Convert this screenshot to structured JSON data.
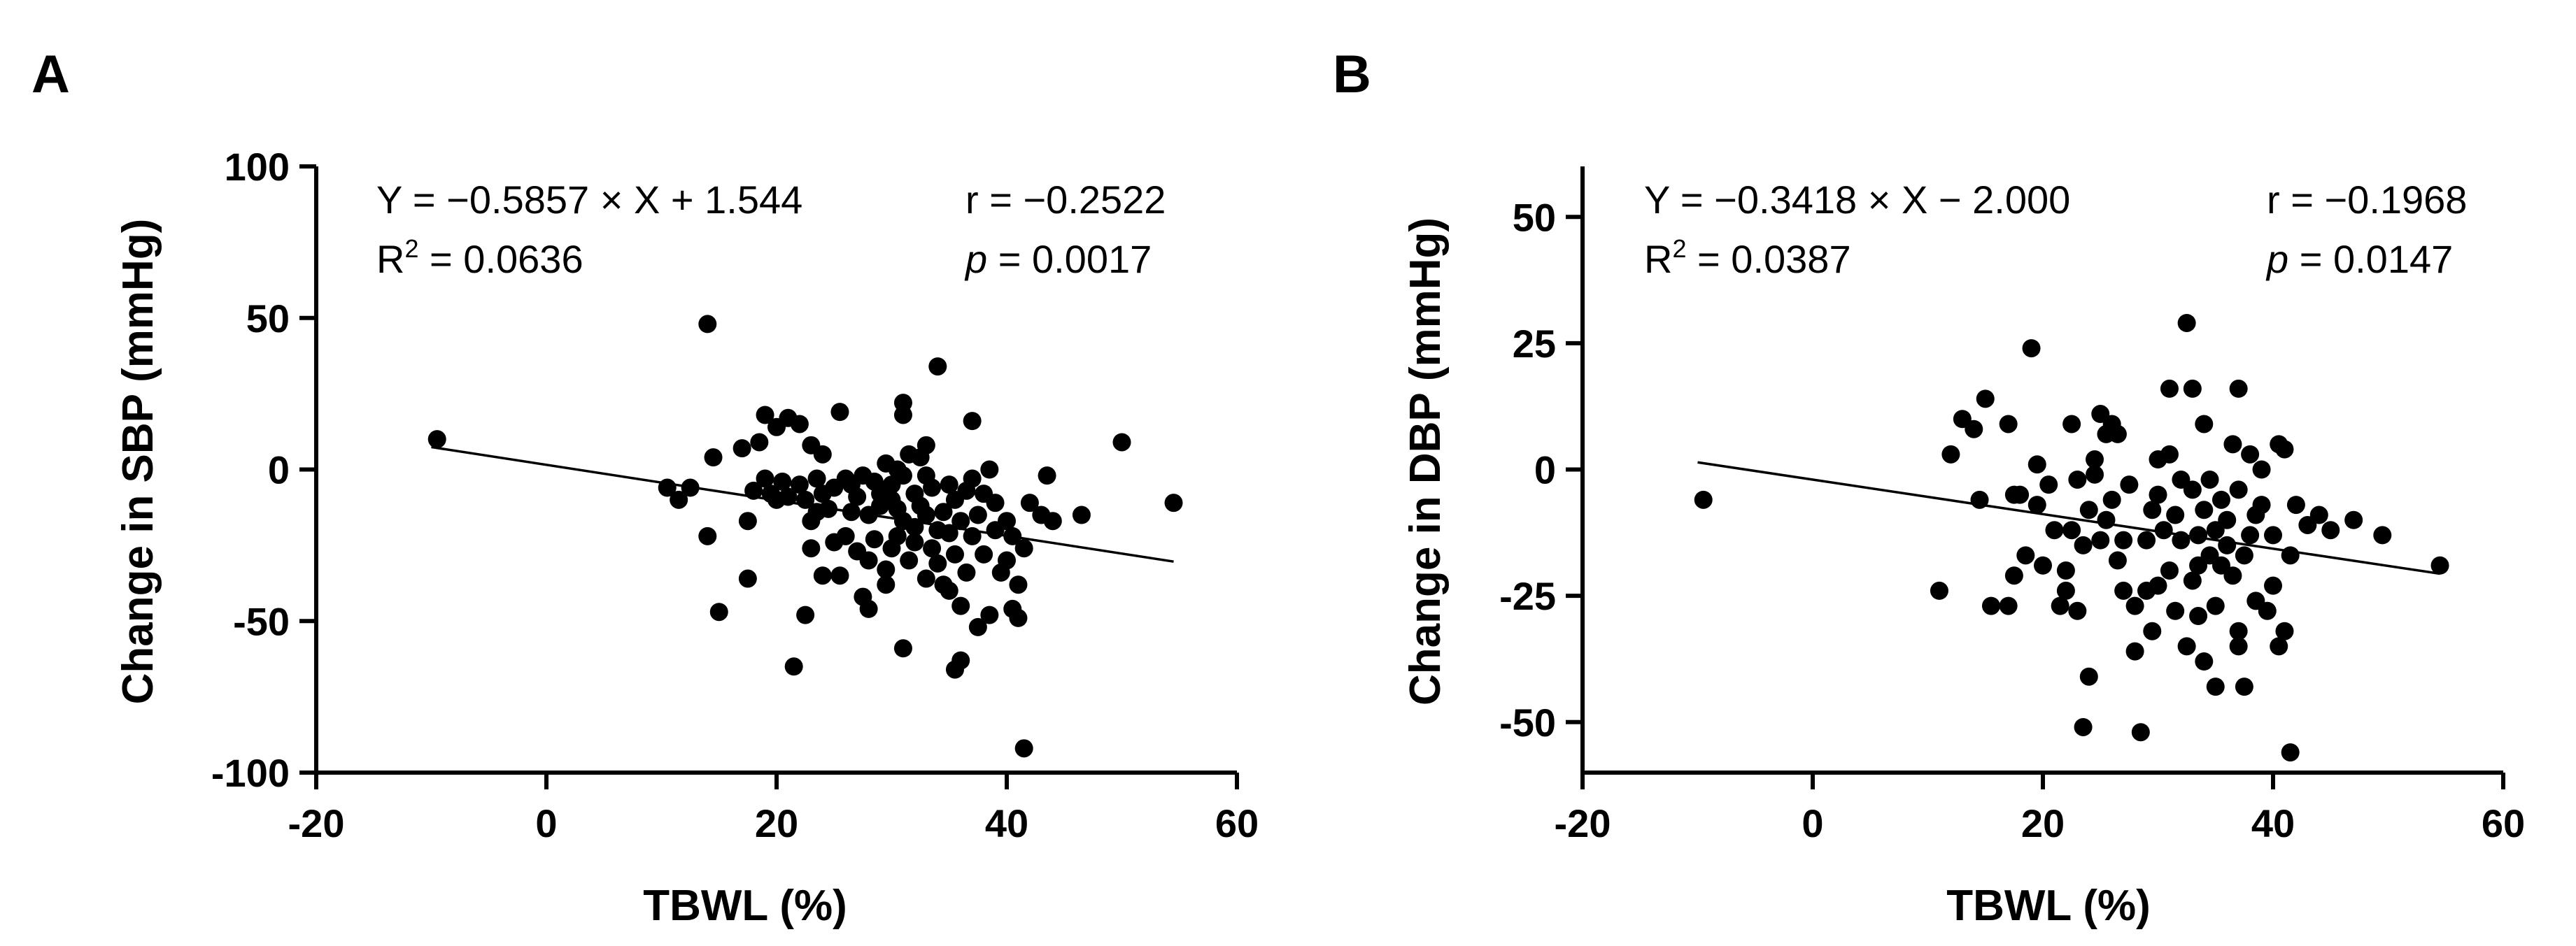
{
  "chart_data": [
    {
      "type": "scatter",
      "panel_label": "A",
      "xlabel": "TBWL (%)",
      "ylabel": "Change in SBP (mmHg)",
      "xlim": [
        -20,
        60
      ],
      "ylim": [
        -100,
        100
      ],
      "xticks": [
        -20,
        0,
        20,
        40,
        60
      ],
      "yticks": [
        -100,
        -50,
        0,
        50,
        100
      ],
      "xtick_labels": [
        "-20",
        "0",
        "20",
        "40",
        "60"
      ],
      "ytick_labels": [
        "-100",
        "-50",
        "0",
        "50",
        "100"
      ],
      "regression": {
        "slope": -0.5857,
        "intercept": 1.544,
        "x_range": [
          -10,
          54.5
        ]
      },
      "equation_text": "Y = −0.5857 × X + 1.544",
      "r2_prefix": "R",
      "r2_sup": "2",
      "r2_value": " = 0.0636",
      "r_text": "r = −0.2522",
      "p_symbol": "p",
      "p_value": " = 0.0017",
      "points": [
        [
          -9.5,
          10
        ],
        [
          14,
          48
        ],
        [
          14.5,
          4
        ],
        [
          14,
          -22
        ],
        [
          15,
          -47
        ],
        [
          10.5,
          -6
        ],
        [
          11.5,
          -10
        ],
        [
          12.5,
          -6
        ],
        [
          17,
          7
        ],
        [
          17.5,
          -17
        ],
        [
          17.5,
          -36
        ],
        [
          18,
          -7
        ],
        [
          18.5,
          9
        ],
        [
          19,
          -3
        ],
        [
          19,
          18
        ],
        [
          19.5,
          -8
        ],
        [
          20,
          14
        ],
        [
          20,
          -10
        ],
        [
          20.5,
          -4
        ],
        [
          21,
          -9
        ],
        [
          21,
          17
        ],
        [
          21.5,
          -65
        ],
        [
          22,
          15
        ],
        [
          22,
          -5
        ],
        [
          22.5,
          -10
        ],
        [
          22.5,
          -48
        ],
        [
          23,
          8
        ],
        [
          23,
          -26
        ],
        [
          23,
          -17
        ],
        [
          23.5,
          -3
        ],
        [
          23.5,
          -14
        ],
        [
          24,
          5
        ],
        [
          24,
          -35
        ],
        [
          24,
          -8
        ],
        [
          24.5,
          -13
        ],
        [
          25,
          -24
        ],
        [
          25,
          -6
        ],
        [
          25.5,
          19
        ],
        [
          25.5,
          -35
        ],
        [
          26,
          -3
        ],
        [
          26,
          -22
        ],
        [
          26.5,
          -14
        ],
        [
          26.5,
          -5
        ],
        [
          27,
          -27
        ],
        [
          27,
          -9
        ],
        [
          27.5,
          -42
        ],
        [
          27.5,
          -2
        ],
        [
          28,
          -46
        ],
        [
          28,
          -15
        ],
        [
          28.5,
          -4
        ],
        [
          28.5,
          -23
        ],
        [
          29,
          -12
        ],
        [
          29,
          -8
        ],
        [
          29.5,
          2
        ],
        [
          29.5,
          -33
        ],
        [
          29.5,
          -38
        ],
        [
          30,
          -10
        ],
        [
          30,
          -26
        ],
        [
          30,
          -5
        ],
        [
          30.5,
          -22
        ],
        [
          30.5,
          -13
        ],
        [
          31,
          -2
        ],
        [
          31,
          -17
        ],
        [
          31,
          22
        ],
        [
          31,
          18
        ],
        [
          31,
          -59
        ],
        [
          31.5,
          5
        ],
        [
          31.5,
          -30
        ],
        [
          32,
          -8
        ],
        [
          32,
          -19
        ],
        [
          32,
          -24
        ],
        [
          32.5,
          4
        ],
        [
          32.5,
          -12
        ],
        [
          33,
          -36
        ],
        [
          33,
          8
        ],
        [
          33,
          -15
        ],
        [
          33.5,
          -26
        ],
        [
          33.5,
          -6
        ],
        [
          34,
          34
        ],
        [
          34,
          -20
        ],
        [
          34,
          -31
        ],
        [
          34.5,
          -38
        ],
        [
          34.5,
          -14
        ],
        [
          35,
          -5
        ],
        [
          35,
          -40
        ],
        [
          35,
          -21
        ],
        [
          35.5,
          -10
        ],
        [
          35.5,
          -28
        ],
        [
          35.5,
          -66
        ],
        [
          36,
          -63
        ],
        [
          36,
          -17
        ],
        [
          36.5,
          -7
        ],
        [
          36.5,
          -34
        ],
        [
          37,
          16
        ],
        [
          37,
          -3
        ],
        [
          37,
          -22
        ],
        [
          37.5,
          -52
        ],
        [
          37.5,
          -15
        ],
        [
          38,
          -28
        ],
        [
          38,
          -8
        ],
        [
          38.5,
          -48
        ],
        [
          38.5,
          0
        ],
        [
          39,
          -20
        ],
        [
          39,
          -11
        ],
        [
          39.5,
          -34
        ],
        [
          40,
          -30
        ],
        [
          40,
          -17
        ],
        [
          40.5,
          -46
        ],
        [
          40.5,
          -22
        ],
        [
          41,
          -38
        ],
        [
          41,
          -49
        ],
        [
          41.5,
          -26
        ],
        [
          41.5,
          -92
        ],
        [
          42,
          -11
        ],
        [
          43,
          -15
        ],
        [
          43.5,
          -2
        ],
        [
          44,
          -17
        ],
        [
          46.5,
          -15
        ],
        [
          50,
          9
        ],
        [
          54.5,
          -11
        ],
        [
          30.5,
          0
        ],
        [
          28,
          -30
        ],
        [
          36,
          -45
        ],
        [
          33,
          -2
        ]
      ]
    },
    {
      "type": "scatter",
      "panel_label": "B",
      "xlabel": "TBWL (%)",
      "ylabel": "Change in DBP (mmHg)",
      "xlim": [
        -20,
        60
      ],
      "ylim": [
        -60,
        60
      ],
      "xticks": [
        -20,
        0,
        20,
        40,
        60
      ],
      "yticks": [
        -50,
        -25,
        0,
        25,
        50
      ],
      "xtick_labels": [
        "-20",
        "0",
        "20",
        "40",
        "60"
      ],
      "ytick_labels": [
        "-50",
        "-25",
        "0",
        "25",
        "50"
      ],
      "regression": {
        "slope": -0.3418,
        "intercept": -2.0,
        "x_range": [
          -10,
          54.5
        ]
      },
      "equation_text": "Y = −0.3418 × X − 2.000",
      "r2_prefix": "R",
      "r2_sup": "2",
      "r2_value": " = 0.0387",
      "r_text": "r = −0.1968",
      "p_symbol": "p",
      "p_value": " = 0.0147",
      "points": [
        [
          -9.5,
          -6
        ],
        [
          11,
          -24
        ],
        [
          12,
          3
        ],
        [
          13,
          10
        ],
        [
          14,
          8
        ],
        [
          14.5,
          -6
        ],
        [
          15,
          14
        ],
        [
          15.5,
          -27
        ],
        [
          17,
          -27
        ],
        [
          17,
          9
        ],
        [
          17.5,
          -5
        ],
        [
          17.5,
          -21
        ],
        [
          18,
          -5
        ],
        [
          18.5,
          -17
        ],
        [
          19,
          24
        ],
        [
          19.5,
          1
        ],
        [
          19.5,
          -7
        ],
        [
          20,
          -19
        ],
        [
          20.5,
          -3
        ],
        [
          21,
          -12
        ],
        [
          21.5,
          -27
        ],
        [
          22,
          -20
        ],
        [
          22,
          -24
        ],
        [
          22.5,
          -12
        ],
        [
          22.5,
          9
        ],
        [
          23,
          -28
        ],
        [
          23,
          -2
        ],
        [
          23.5,
          -15
        ],
        [
          23.5,
          -51
        ],
        [
          24,
          -41
        ],
        [
          24,
          -8
        ],
        [
          24.5,
          -1
        ],
        [
          24.5,
          2
        ],
        [
          25,
          11
        ],
        [
          25,
          -14
        ],
        [
          25.5,
          -10
        ],
        [
          25.5,
          7
        ],
        [
          26,
          9
        ],
        [
          26,
          -6
        ],
        [
          26.5,
          -18
        ],
        [
          27,
          -24
        ],
        [
          27,
          -14
        ],
        [
          27.5,
          -3
        ],
        [
          28,
          -36
        ],
        [
          28,
          -27
        ],
        [
          28.5,
          -52
        ],
        [
          29,
          -24
        ],
        [
          29,
          -14
        ],
        [
          29.5,
          -32
        ],
        [
          30,
          -5
        ],
        [
          30,
          -23
        ],
        [
          30,
          2
        ],
        [
          30.5,
          -12
        ],
        [
          31,
          3
        ],
        [
          31,
          -20
        ],
        [
          31,
          16
        ],
        [
          31.5,
          -9
        ],
        [
          31.5,
          -28
        ],
        [
          32,
          -14
        ],
        [
          32,
          -2
        ],
        [
          32.5,
          29
        ],
        [
          32.5,
          -35
        ],
        [
          33,
          -22
        ],
        [
          33,
          -4
        ],
        [
          33,
          16
        ],
        [
          33.5,
          -13
        ],
        [
          33.5,
          -29
        ],
        [
          34,
          -8
        ],
        [
          34,
          9
        ],
        [
          34,
          -38
        ],
        [
          34.5,
          -17
        ],
        [
          34.5,
          -2
        ],
        [
          35,
          -12
        ],
        [
          35,
          -27
        ],
        [
          35,
          -43
        ],
        [
          35.5,
          -19
        ],
        [
          35.5,
          -6
        ],
        [
          36,
          -15
        ],
        [
          36,
          -10
        ],
        [
          36.5,
          5
        ],
        [
          36.5,
          -21
        ],
        [
          37,
          16
        ],
        [
          37,
          -32
        ],
        [
          37,
          -35
        ],
        [
          37,
          -4
        ],
        [
          37.5,
          -43
        ],
        [
          37.5,
          -17
        ],
        [
          38,
          -13
        ],
        [
          38,
          3
        ],
        [
          38.5,
          -26
        ],
        [
          38.5,
          -9
        ],
        [
          39,
          -7
        ],
        [
          39,
          0
        ],
        [
          39.5,
          -28
        ],
        [
          40,
          -13
        ],
        [
          40,
          -23
        ],
        [
          40.5,
          5
        ],
        [
          40.5,
          -35
        ],
        [
          41,
          -32
        ],
        [
          41,
          4
        ],
        [
          41.5,
          -56
        ],
        [
          41.5,
          -17
        ],
        [
          42,
          -7
        ],
        [
          43,
          -11
        ],
        [
          44,
          -9
        ],
        [
          45,
          -12
        ],
        [
          47,
          -10
        ],
        [
          49.5,
          -13
        ],
        [
          54.5,
          -19
        ],
        [
          26.5,
          7
        ],
        [
          29.5,
          -8
        ],
        [
          33.5,
          -19
        ]
      ]
    }
  ]
}
